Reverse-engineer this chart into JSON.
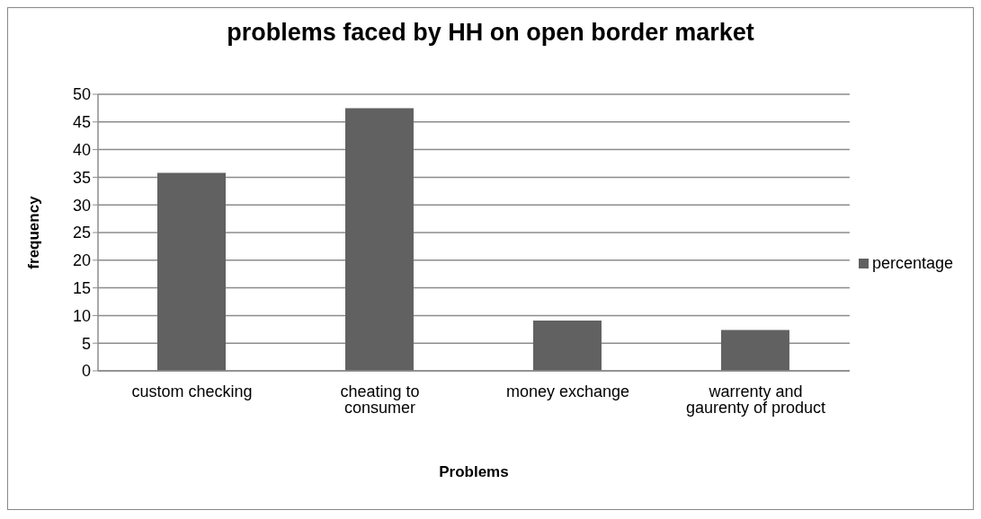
{
  "chart_data": {
    "type": "bar",
    "title": "problems faced by HH on open border market",
    "xlabel": "Problems",
    "ylabel": "frequency",
    "categories": [
      "custom checking",
      "cheating to consumer",
      "money exchange",
      "warrenty and gaurenty of product"
    ],
    "series": [
      {
        "name": "percentage",
        "color": "#616161",
        "values": [
          35.8,
          47.5,
          9.1,
          7.4
        ]
      }
    ],
    "ylim": [
      0,
      50
    ],
    "yticks": [
      0,
      5,
      10,
      15,
      20,
      25,
      30,
      35,
      40,
      45,
      50
    ],
    "grid": "y",
    "legend": "right"
  }
}
